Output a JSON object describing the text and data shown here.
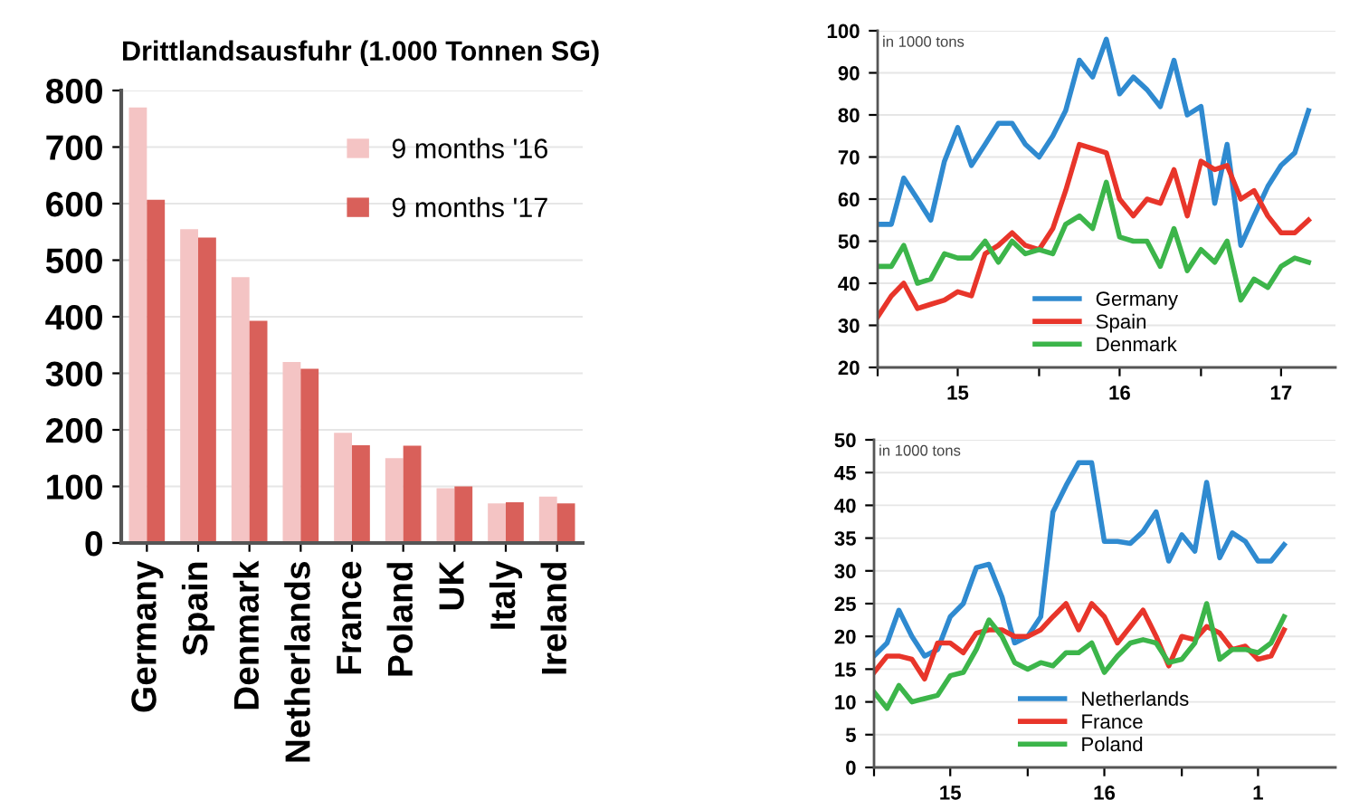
{
  "chart_data": [
    {
      "type": "bar",
      "title": "Drittlandsausfuhr (1.000 Tonnen SG)",
      "categories": [
        "Germany",
        "Spain",
        "Denmark",
        "Netherlands",
        "France",
        "Poland",
        "UK",
        "Italy",
        "Ireland"
      ],
      "series": [
        {
          "name": "9 months '16",
          "color": "#f4c4c4",
          "values": [
            770,
            555,
            470,
            320,
            195,
            150,
            97,
            70,
            82
          ]
        },
        {
          "name": "9 months '17",
          "color": "#d9605a",
          "values": [
            607,
            540,
            393,
            308,
            173,
            172,
            100,
            72,
            70
          ]
        }
      ],
      "ylim": [
        0,
        800
      ],
      "yticks": [
        0,
        100,
        200,
        300,
        400,
        500,
        600,
        700,
        800
      ],
      "grid": "y",
      "legend": "top right"
    },
    {
      "type": "line",
      "annotations": [
        "in 1000 tons"
      ],
      "x": [
        "2015-01",
        "2015-02",
        "2015-03",
        "2015-04",
        "2015-05",
        "2015-06",
        "2015-07",
        "2015-08",
        "2015-09",
        "2015-10",
        "2015-11",
        "2015-12",
        "2016-01",
        "2016-02",
        "2016-03",
        "2016-04",
        "2016-05",
        "2016-06",
        "2016-07",
        "2016-08",
        "2016-09",
        "2016-10",
        "2016-11",
        "2016-12",
        "2017-01",
        "2017-02",
        "2017-03",
        "2017-04",
        "2017-05",
        "2017-06",
        "2017-07",
        "2017-08",
        "2017-09"
      ],
      "series": [
        {
          "name": "Germany",
          "color": "#2f8ad0",
          "values": [
            54,
            54,
            65,
            60,
            55,
            69,
            77,
            68,
            73,
            78,
            78,
            73,
            70,
            75,
            81,
            93,
            89,
            98,
            85,
            89,
            86,
            82,
            93,
            80,
            82,
            59,
            73,
            49,
            56,
            63,
            68,
            71,
            81
          ]
        },
        {
          "name": "Spain",
          "color": "#e8352a",
          "values": [
            32,
            37,
            40,
            34,
            35,
            36,
            38,
            37,
            47,
            49,
            52,
            49,
            48,
            53,
            62,
            73,
            72,
            71,
            60,
            56,
            60,
            59,
            67,
            56,
            69,
            67,
            68,
            60,
            62,
            56,
            52,
            52,
            55
          ]
        },
        {
          "name": "Denmark",
          "color": "#3cb54a",
          "values": [
            44,
            44,
            49,
            40,
            41,
            47,
            46,
            46,
            50,
            45,
            50,
            47,
            48,
            47,
            54,
            56,
            53,
            64,
            51,
            50,
            50,
            44,
            53,
            43,
            48,
            45,
            50,
            36,
            41,
            39,
            44,
            46,
            45
          ]
        }
      ],
      "xlim": [
        "2015-01",
        "2017-11"
      ],
      "xticks": [
        {
          "value": "2015-01",
          "label": null
        },
        {
          "value": "2015-07",
          "label": "15"
        },
        {
          "value": "2016-01",
          "label": null
        },
        {
          "value": "2016-07",
          "label": "16"
        },
        {
          "value": "2017-01",
          "label": null
        },
        {
          "value": "2017-07",
          "label": "17"
        }
      ],
      "ylim": [
        20,
        100
      ],
      "yticks": [
        20,
        30,
        40,
        50,
        60,
        70,
        80,
        90,
        100
      ],
      "grid": "y",
      "legend": "bottom"
    },
    {
      "type": "line",
      "annotations": [
        "in 1000 tons"
      ],
      "x": [
        "2015-01",
        "2015-02",
        "2015-03",
        "2015-04",
        "2015-05",
        "2015-06",
        "2015-07",
        "2015-08",
        "2015-09",
        "2015-10",
        "2015-11",
        "2015-12",
        "2016-01",
        "2016-02",
        "2016-03",
        "2016-04",
        "2016-05",
        "2016-06",
        "2016-07",
        "2016-08",
        "2016-09",
        "2016-10",
        "2016-11",
        "2016-12",
        "2017-01",
        "2017-02",
        "2017-03",
        "2017-04",
        "2017-05",
        "2017-06",
        "2017-07",
        "2017-08",
        "2017-09"
      ],
      "series": [
        {
          "name": "Netherlands",
          "color": "#2f8ad0",
          "values": [
            17,
            19,
            24,
            20,
            17,
            18,
            23,
            25,
            30.5,
            31,
            26,
            19,
            20,
            23,
            39,
            43,
            46.5,
            46.5,
            34.5,
            34.5,
            34.2,
            36,
            39,
            31.5,
            35.5,
            33,
            43.5,
            32,
            35.8,
            34.5,
            31.5,
            31.5,
            34
          ]
        },
        {
          "name": "France",
          "color": "#e8352a",
          "values": [
            14.5,
            17,
            17,
            16.5,
            13.5,
            19,
            19,
            17.5,
            20.5,
            21,
            21,
            20,
            20,
            21,
            23,
            25,
            21,
            25,
            23,
            19,
            21.5,
            24,
            20,
            15.5,
            20,
            19.5,
            21.5,
            20.5,
            18,
            18.5,
            16.5,
            17,
            21
          ]
        },
        {
          "name": "Poland",
          "color": "#3cb54a",
          "values": [
            11.5,
            9,
            12.5,
            10,
            10.5,
            11,
            14,
            14.5,
            18,
            22.5,
            20,
            16,
            15,
            16,
            15.5,
            17.5,
            17.5,
            19,
            14.5,
            17,
            19,
            19.5,
            19,
            16,
            16.5,
            19,
            25,
            16.5,
            18,
            18,
            17.5,
            19,
            23
          ]
        }
      ],
      "xlim": [
        "2015-01",
        "2018-01"
      ],
      "xticks": [
        {
          "value": "2015-01",
          "label": null
        },
        {
          "value": "2015-07",
          "label": "15"
        },
        {
          "value": "2016-01",
          "label": null
        },
        {
          "value": "2016-07",
          "label": "16"
        },
        {
          "value": "2017-01",
          "label": null
        },
        {
          "value": "2017-07",
          "label": "1"
        }
      ],
      "ylim": [
        0,
        50
      ],
      "yticks": [
        0,
        5,
        10,
        15,
        20,
        25,
        30,
        35,
        40,
        45,
        50
      ],
      "grid": "y",
      "legend": "bottom"
    }
  ]
}
